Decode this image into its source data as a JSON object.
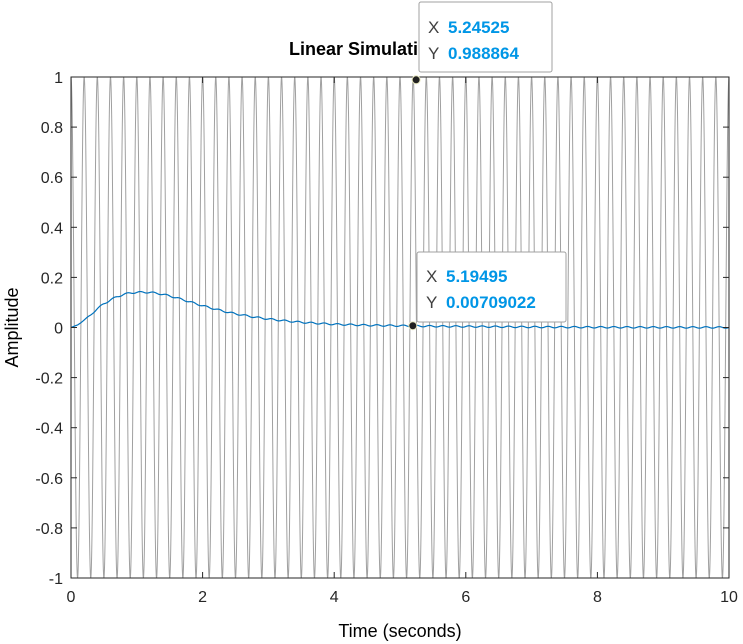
{
  "chart_data": {
    "type": "line",
    "title": "Linear Simulati",
    "xlabel": "Time (seconds)",
    "ylabel": "Amplitude",
    "xlim": [
      0,
      10
    ],
    "ylim": [
      -1,
      1
    ],
    "xticks": [
      0,
      2,
      4,
      6,
      8,
      10
    ],
    "yticks": [
      -1,
      -0.8,
      -0.6,
      -0.4,
      -0.2,
      0,
      0.2,
      0.4,
      0.6,
      0.8,
      1
    ],
    "xtick_labels": [
      "0",
      "2",
      "4",
      "6",
      "8",
      "10"
    ],
    "ytick_labels": [
      "-1",
      "-0.8",
      "-0.6",
      "-0.4",
      "-0.2",
      "0",
      "0.2",
      "0.4",
      "0.6",
      "0.8",
      "1"
    ],
    "grid": false,
    "series": [
      {
        "role": "input",
        "color": "#a0a0a0",
        "waveform": "cosine",
        "amplitude": 1,
        "frequency_hz": 5,
        "x_range": [
          0,
          10
        ]
      },
      {
        "role": "response",
        "color": "#0072bd",
        "x": [
          0,
          0.1,
          0.2,
          0.3,
          0.4,
          0.5,
          0.6,
          0.7,
          0.8,
          0.9,
          1.0,
          1.1,
          1.2,
          1.3,
          1.4,
          1.5,
          1.6,
          1.7,
          1.8,
          1.9,
          2.0,
          2.2,
          2.4,
          2.6,
          2.8,
          3.0,
          3.2,
          3.4,
          3.6,
          3.8,
          4.0,
          4.5,
          5.0,
          5.5,
          6.0,
          6.5,
          7.0,
          7.5,
          8.0,
          8.5,
          9.0,
          9.5,
          10.0
        ],
        "y": [
          0,
          0.01,
          0.03,
          0.05,
          0.075,
          0.095,
          0.11,
          0.123,
          0.132,
          0.138,
          0.14,
          0.141,
          0.14,
          0.137,
          0.132,
          0.126,
          0.119,
          0.111,
          0.103,
          0.095,
          0.087,
          0.073,
          0.06,
          0.05,
          0.041,
          0.034,
          0.028,
          0.023,
          0.019,
          0.016,
          0.013,
          0.009,
          0.007,
          0.005,
          0.004,
          0.003,
          0.002,
          0.0015,
          0.001,
          0.0008,
          0.0006,
          0.0004,
          0.0003
        ],
        "ripple_amplitude": 0.003,
        "ripple_frequency_hz": 5
      }
    ],
    "datatips": [
      {
        "x_label": "X",
        "x": "5.24525",
        "y_label": "Y",
        "y": "0.988864",
        "xval": 5.24525,
        "yval": 0.988864
      },
      {
        "x_label": "X",
        "x": "5.19495",
        "y_label": "Y",
        "y": "0.00709022",
        "xval": 5.19495,
        "yval": 0.00709022
      }
    ]
  }
}
